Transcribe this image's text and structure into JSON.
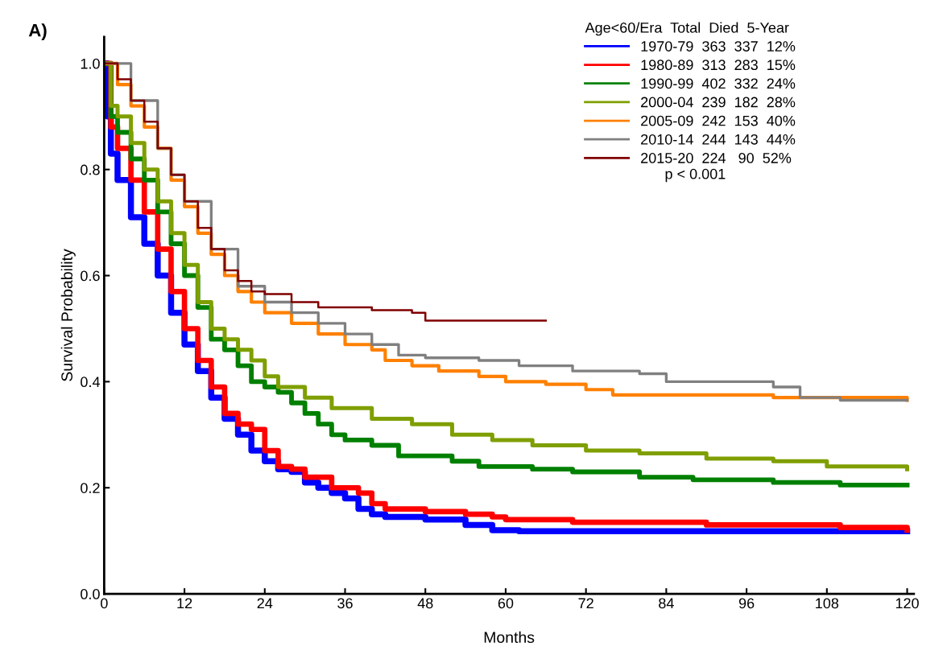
{
  "chart_data": {
    "type": "step",
    "title": "A)",
    "xlabel": "Months",
    "ylabel": "Survival Probability",
    "legend_title": "Age<60/Era  Total  Died  5-Year",
    "legend": "top right",
    "grid": false,
    "marker": "none",
    "line_style": "solid",
    "annotations": [
      "p < 0.001"
    ],
    "xlim": [
      0,
      121
    ],
    "ylim": [
      0,
      1.05
    ],
    "xticks": [
      0,
      12,
      24,
      36,
      48,
      60,
      72,
      84,
      96,
      108,
      120
    ],
    "yticks": [
      {
        "value": 0,
        "label": "0.0"
      },
      {
        "value": 0.2,
        "label": "0.2"
      },
      {
        "value": 0.4,
        "label": "0.4"
      },
      {
        "value": 0.6,
        "label": "0.6"
      },
      {
        "value": 0.8,
        "label": "0.8"
      },
      {
        "value": 1,
        "label": "1.0"
      }
    ],
    "series": [
      {
        "name": "1970-79  363  337  12%",
        "color": "#0000ff",
        "x": [
          0,
          0.5,
          1,
          2,
          4,
          6,
          8,
          10,
          12,
          14,
          16,
          18,
          20,
          22,
          24,
          26,
          28,
          30,
          32,
          34,
          36,
          38,
          40,
          42,
          48,
          54,
          58,
          62,
          120
        ],
        "values": [
          1.0,
          0.9,
          0.83,
          0.78,
          0.71,
          0.66,
          0.6,
          0.53,
          0.47,
          0.42,
          0.37,
          0.33,
          0.3,
          0.27,
          0.25,
          0.235,
          0.23,
          0.21,
          0.2,
          0.19,
          0.18,
          0.16,
          0.15,
          0.145,
          0.14,
          0.13,
          0.12,
          0.118,
          0.118
        ]
      },
      {
        "name": "1980-89  313  283  15%",
        "color": "#ff0000",
        "x": [
          0,
          1,
          2,
          4,
          6,
          8,
          10,
          12,
          14,
          16,
          18,
          20,
          22,
          24,
          26,
          28,
          30,
          34,
          38,
          40,
          42,
          48,
          54,
          58,
          60,
          70,
          90,
          110,
          120
        ],
        "values": [
          1.0,
          0.88,
          0.84,
          0.78,
          0.72,
          0.65,
          0.57,
          0.5,
          0.44,
          0.39,
          0.34,
          0.32,
          0.31,
          0.27,
          0.24,
          0.235,
          0.22,
          0.2,
          0.19,
          0.17,
          0.16,
          0.155,
          0.15,
          0.145,
          0.14,
          0.135,
          0.13,
          0.125,
          0.12
        ]
      },
      {
        "name": "1990-99  402  332  24%",
        "color": "#008000",
        "x": [
          0,
          1,
          2,
          4,
          6,
          8,
          10,
          12,
          14,
          16,
          18,
          20,
          22,
          24,
          26,
          28,
          30,
          32,
          34,
          36,
          40,
          44,
          48,
          52,
          56,
          64,
          70,
          80,
          88,
          100,
          110,
          120
        ],
        "values": [
          1.0,
          0.9,
          0.87,
          0.82,
          0.78,
          0.72,
          0.66,
          0.6,
          0.54,
          0.48,
          0.46,
          0.43,
          0.4,
          0.39,
          0.38,
          0.36,
          0.34,
          0.32,
          0.3,
          0.29,
          0.28,
          0.26,
          0.26,
          0.25,
          0.24,
          0.235,
          0.23,
          0.22,
          0.215,
          0.21,
          0.205,
          0.205
        ]
      },
      {
        "name": "2000-04  239  182  28%",
        "color": "#7f9f00",
        "x": [
          0,
          1,
          2,
          4,
          6,
          8,
          10,
          12,
          14,
          16,
          18,
          20,
          22,
          24,
          26,
          30,
          34,
          40,
          46,
          52,
          58,
          64,
          72,
          80,
          90,
          100,
          108,
          114,
          120
        ],
        "values": [
          1.0,
          0.92,
          0.9,
          0.85,
          0.8,
          0.74,
          0.68,
          0.62,
          0.55,
          0.5,
          0.48,
          0.46,
          0.44,
          0.41,
          0.39,
          0.37,
          0.35,
          0.33,
          0.32,
          0.3,
          0.29,
          0.28,
          0.27,
          0.265,
          0.255,
          0.25,
          0.24,
          0.24,
          0.235
        ]
      },
      {
        "name": "2005-09  242  153  40%",
        "color": "#ff8000",
        "x": [
          0,
          2,
          4,
          6,
          8,
          10,
          12,
          14,
          16,
          18,
          20,
          22,
          24,
          28,
          32,
          36,
          40,
          42,
          46,
          50,
          56,
          60,
          66,
          72,
          76,
          90,
          100,
          110,
          120
        ],
        "values": [
          1.0,
          0.96,
          0.92,
          0.88,
          0.84,
          0.78,
          0.73,
          0.68,
          0.64,
          0.6,
          0.57,
          0.55,
          0.53,
          0.51,
          0.49,
          0.47,
          0.46,
          0.44,
          0.43,
          0.42,
          0.41,
          0.4,
          0.395,
          0.385,
          0.375,
          0.375,
          0.37,
          0.37,
          0.365
        ]
      },
      {
        "name": "2010-14  244  143  44%",
        "color": "#808080",
        "x": [
          0,
          4,
          8,
          10,
          12,
          16,
          20,
          24,
          28,
          32,
          36,
          40,
          44,
          48,
          56,
          62,
          70,
          80,
          84,
          96,
          100,
          104,
          110,
          120
        ],
        "values": [
          1.0,
          0.93,
          0.84,
          0.79,
          0.74,
          0.65,
          0.58,
          0.55,
          0.53,
          0.51,
          0.49,
          0.47,
          0.45,
          0.445,
          0.44,
          0.43,
          0.42,
          0.415,
          0.4,
          0.4,
          0.39,
          0.37,
          0.365,
          0.365
        ]
      },
      {
        "name": "2015-20  224   90  52%",
        "color": "#800000",
        "x": [
          0,
          2,
          4,
          6,
          8,
          10,
          12,
          14,
          16,
          18,
          20,
          22,
          24,
          28,
          32,
          40,
          46,
          48,
          66
        ],
        "values": [
          1.0,
          0.97,
          0.93,
          0.89,
          0.84,
          0.79,
          0.74,
          0.69,
          0.65,
          0.61,
          0.59,
          0.57,
          0.565,
          0.55,
          0.54,
          0.535,
          0.53,
          0.515,
          0.515
        ]
      }
    ]
  }
}
